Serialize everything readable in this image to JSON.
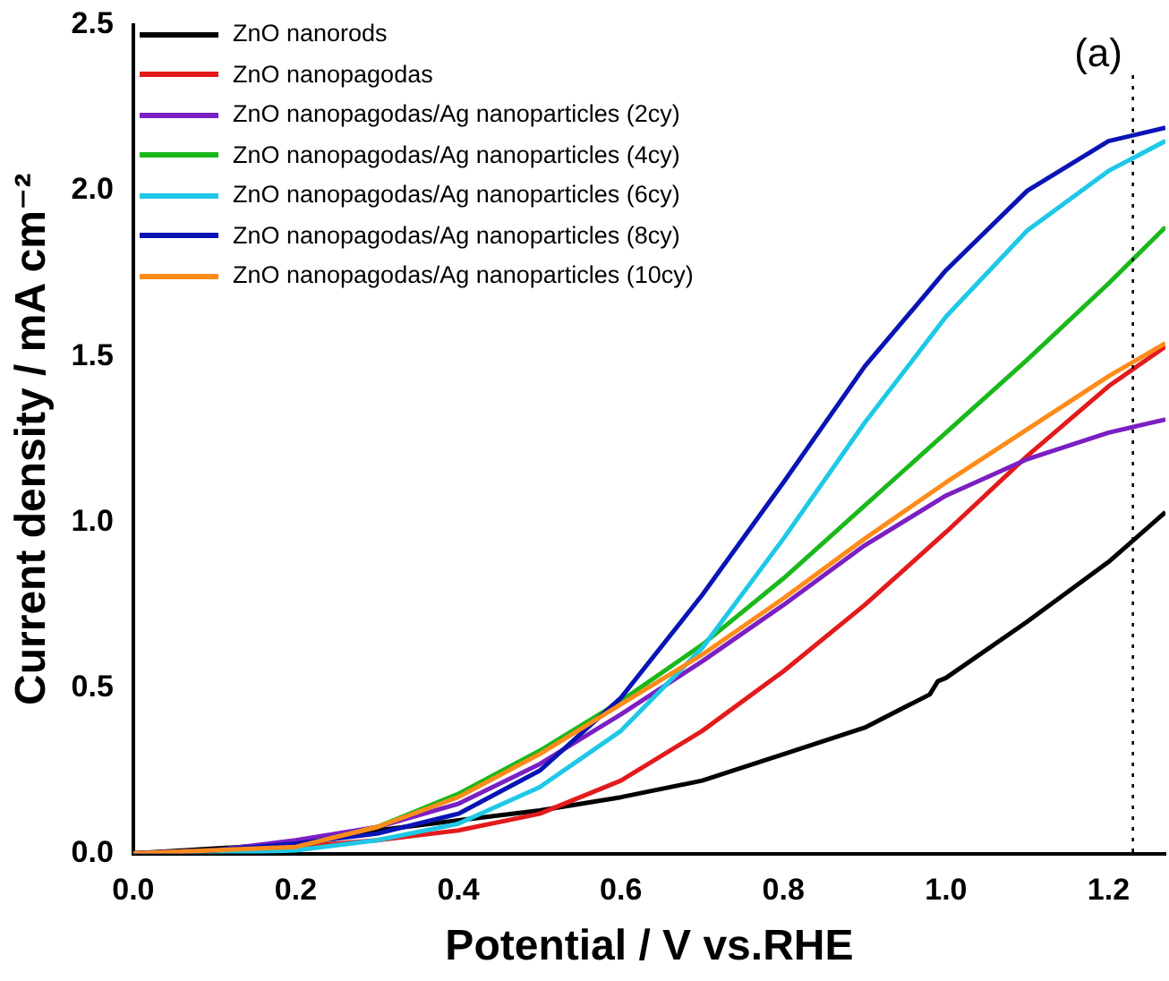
{
  "chart_data": {
    "type": "line",
    "xlabel": "Potential / V vs.RHE",
    "ylabel": "Current density / mA cm⁻²",
    "annotations": [
      "(a)"
    ],
    "x": [
      0,
      0.1,
      0.2,
      0.3,
      0.4,
      0.5,
      0.6,
      0.7,
      0.8,
      0.9,
      1.0,
      1.1,
      1.2,
      1.27
    ],
    "series": [
      {
        "name": "ZnO nanorods",
        "color": "#000000",
        "x": [
          0,
          0.2,
          0.3,
          0.4,
          0.5,
          0.6,
          0.7,
          0.8,
          0.9,
          0.98,
          0.99,
          1.0,
          1.1,
          1.2,
          1.27
        ],
        "values": [
          0,
          0.03,
          0.07,
          0.1,
          0.13,
          0.17,
          0.22,
          0.3,
          0.38,
          0.48,
          0.52,
          0.53,
          0.7,
          0.88,
          1.03
        ]
      },
      {
        "name": "ZnO nanopagodas",
        "color": "#e31a1c",
        "values": [
          0,
          0.01,
          0.02,
          0.04,
          0.07,
          0.12,
          0.22,
          0.37,
          0.55,
          0.75,
          0.97,
          1.2,
          1.41,
          1.53
        ]
      },
      {
        "name": "ZnO nanopagodas/Ag nanoparticles (2cy)",
        "color": "#7b1fc2",
        "values": [
          0,
          0.01,
          0.04,
          0.08,
          0.15,
          0.27,
          0.42,
          0.58,
          0.75,
          0.93,
          1.08,
          1.19,
          1.27,
          1.31
        ]
      },
      {
        "name": "ZnO nanopagodas/Ag nanoparticles (4cy)",
        "color": "#1bb81b",
        "values": [
          null,
          null,
          0.02,
          0.08,
          0.18,
          0.31,
          0.46,
          0.63,
          0.83,
          1.05,
          1.27,
          1.49,
          1.72,
          1.89
        ]
      },
      {
        "name": "ZnO nanopagodas/Ag nanoparticles (6cy)",
        "color": "#1ec8e6",
        "values": [
          0,
          0.0,
          0.01,
          0.04,
          0.09,
          0.2,
          0.37,
          0.62,
          0.95,
          1.3,
          1.62,
          1.88,
          2.06,
          2.15
        ]
      },
      {
        "name": "ZnO nanopagodas/Ag nanoparticles (8cy)",
        "color": "#0a14b4",
        "values": [
          0,
          0.01,
          0.03,
          0.06,
          0.12,
          0.25,
          0.47,
          0.78,
          1.12,
          1.47,
          1.76,
          2.0,
          2.15,
          2.19
        ]
      },
      {
        "name": "ZnO nanopagodas/Ag nanoparticles (10cy)",
        "color": "#ff8c1a",
        "values": [
          0,
          0.01,
          0.02,
          0.08,
          0.17,
          0.3,
          0.45,
          0.6,
          0.77,
          0.95,
          1.12,
          1.28,
          1.44,
          1.54
        ]
      }
    ],
    "xlim": [
      0,
      1.27
    ],
    "xticks": [
      {
        "value": 0,
        "label": "0.0"
      },
      {
        "value": 0.2,
        "label": "0.2"
      },
      {
        "value": 0.4,
        "label": "0.4"
      },
      {
        "value": 0.6,
        "label": "0.6"
      },
      {
        "value": 0.8,
        "label": "0.8"
      },
      {
        "value": 1.0,
        "label": "1.0"
      },
      {
        "value": 1.2,
        "label": "1.2"
      }
    ],
    "ylim": [
      0,
      2.5
    ],
    "yticks": [
      {
        "value": 0,
        "label": "0.0"
      },
      {
        "value": 0.5,
        "label": "0.5"
      },
      {
        "value": 1.0,
        "label": "1.0"
      },
      {
        "value": 1.5,
        "label": "1.5"
      },
      {
        "value": 2.0,
        "label": "2.0"
      },
      {
        "value": 2.5,
        "label": "2.5"
      }
    ],
    "ref_lines": [
      {
        "axis": "x",
        "value": 1.23,
        "color": "#000000",
        "line_style": "dotted"
      }
    ],
    "grid": false,
    "legend": "top left",
    "marker": "none",
    "line_style": "solid"
  }
}
